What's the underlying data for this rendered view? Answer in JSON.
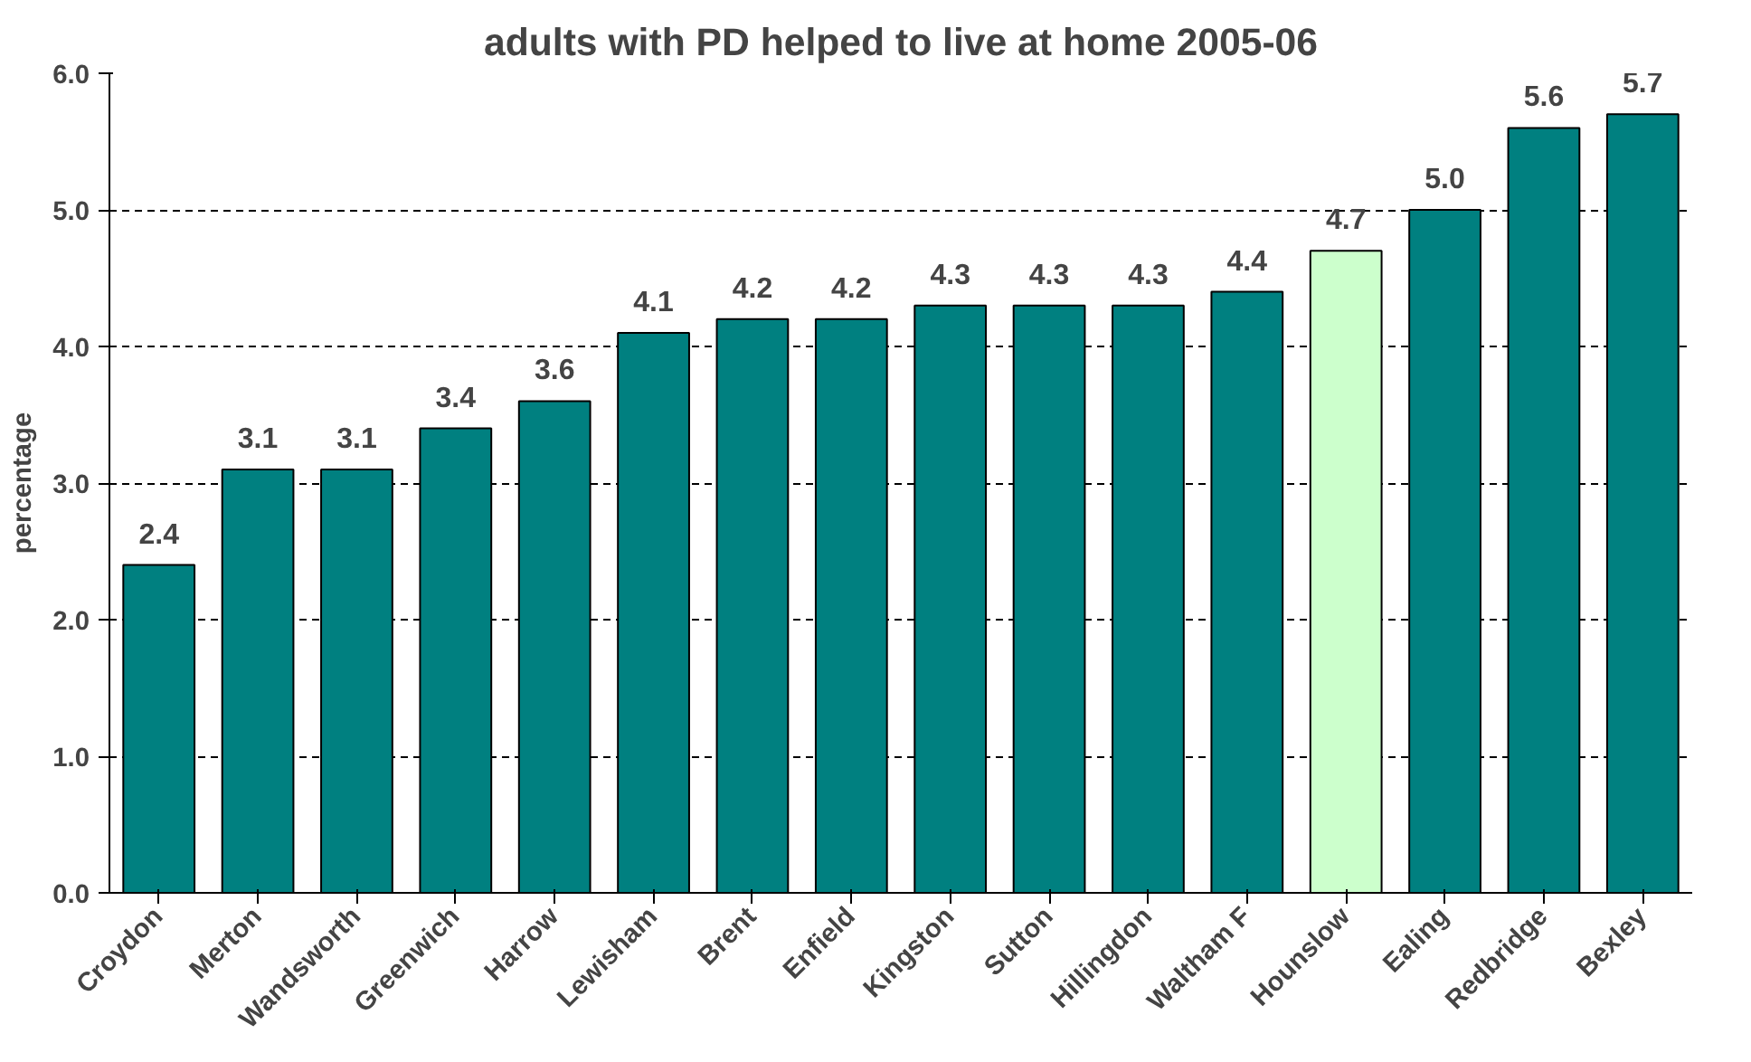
{
  "chart_data": {
    "type": "bar",
    "title": "adults with PD helped to live at home 2005-06",
    "ylabel": "percentage",
    "categories": [
      "Croydon",
      "Merton",
      "Wandsworth",
      "Greenwich",
      "Harrow",
      "Lewisham",
      "Brent",
      "Enfield",
      "Kingston",
      "Sutton",
      "Hillingdon",
      "Waltham F",
      "Hounslow",
      "Ealing",
      "Redbridge",
      "Bexley"
    ],
    "values": [
      2.4,
      3.1,
      3.1,
      3.4,
      3.6,
      4.1,
      4.2,
      4.2,
      4.3,
      4.3,
      4.3,
      4.4,
      4.7,
      5.0,
      5.6,
      5.7
    ],
    "colors": [
      "#008080",
      "#008080",
      "#008080",
      "#008080",
      "#008080",
      "#008080",
      "#008080",
      "#008080",
      "#008080",
      "#008080",
      "#008080",
      "#008080",
      "#ccffcc",
      "#008080",
      "#008080",
      "#008080"
    ],
    "ylim": [
      0,
      6
    ],
    "yticks": [
      {
        "value": 0,
        "label": "0.0"
      },
      {
        "value": 1,
        "label": "1.0"
      },
      {
        "value": 2,
        "label": "2.0"
      },
      {
        "value": 3,
        "label": "3.0"
      },
      {
        "value": 4,
        "label": "4.0"
      },
      {
        "value": 5,
        "label": "5.0"
      },
      {
        "value": 6,
        "label": "6.0"
      }
    ],
    "value_labels": [
      "2.4",
      "3.1",
      "3.1",
      "3.4",
      "3.6",
      "4.1",
      "4.2",
      "4.2",
      "4.3",
      "4.3",
      "4.3",
      "4.4",
      "4.7",
      "5.0",
      "5.6",
      "5.7"
    ],
    "grid": "y"
  }
}
